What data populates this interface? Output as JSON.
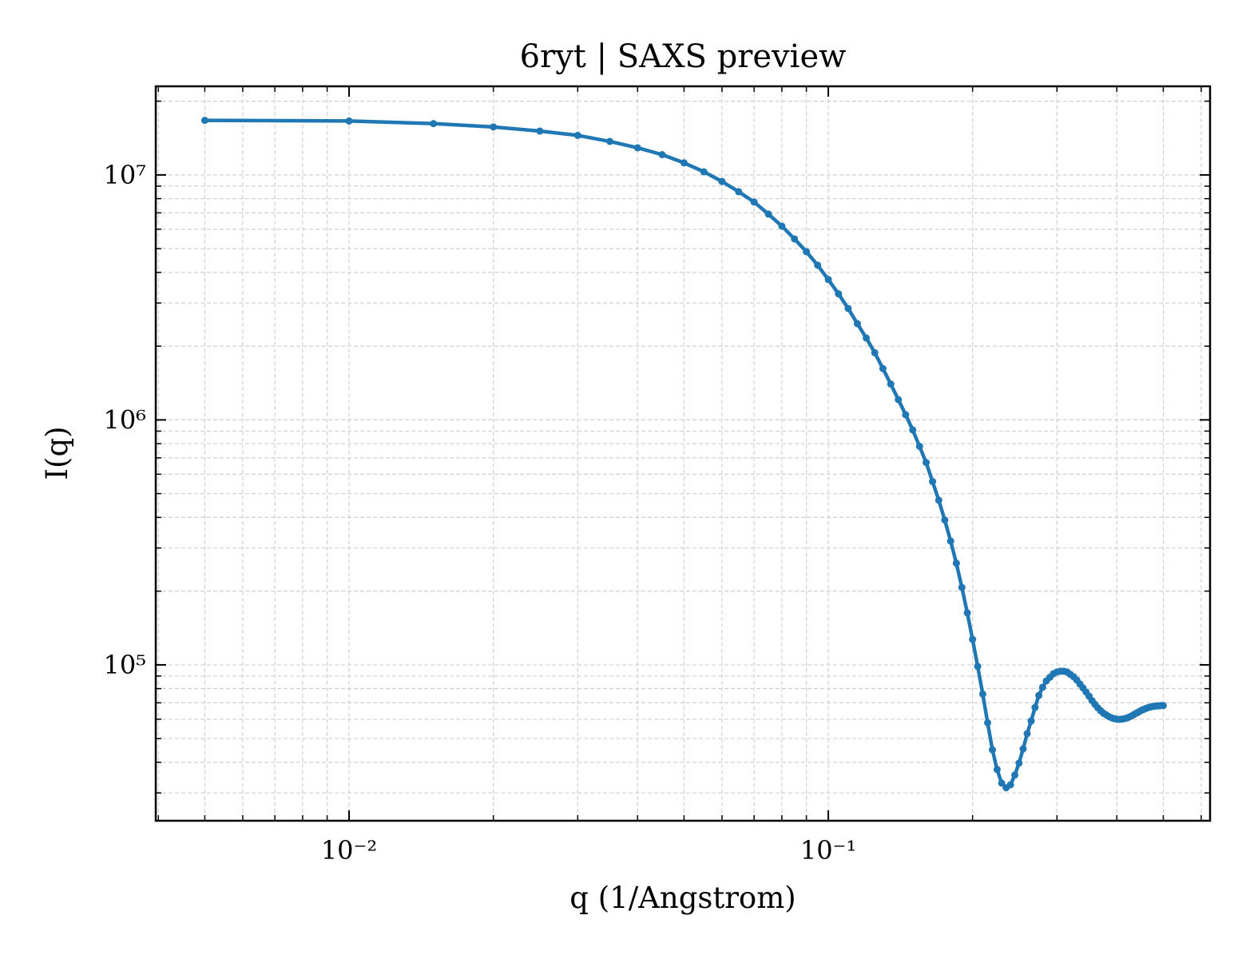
{
  "chart_data": {
    "type": "line",
    "title": "6ryt | SAXS preview",
    "x_label": "q (1/Angstrom)",
    "y_label": "I(q)",
    "x": [
      0.005,
      0.01,
      0.015,
      0.02,
      0.025,
      0.03,
      0.035,
      0.04,
      0.045,
      0.05,
      0.055,
      0.06,
      0.065,
      0.07,
      0.075,
      0.08,
      0.085,
      0.09,
      0.095,
      0.1,
      0.105,
      0.11,
      0.115,
      0.12,
      0.125,
      0.13,
      0.135,
      0.14,
      0.145,
      0.15,
      0.155,
      0.16,
      0.165,
      0.17,
      0.175,
      0.18,
      0.185,
      0.19,
      0.195,
      0.2,
      0.205,
      0.21,
      0.215,
      0.22,
      0.225,
      0.23,
      0.235,
      0.24,
      0.245,
      0.25,
      0.255,
      0.26,
      0.265,
      0.27,
      0.275,
      0.28,
      0.285,
      0.29,
      0.295,
      0.3,
      0.305,
      0.31,
      0.315,
      0.32,
      0.325,
      0.33,
      0.335,
      0.34,
      0.345,
      0.35,
      0.355,
      0.36,
      0.365,
      0.37,
      0.375,
      0.38,
      0.385,
      0.39,
      0.395,
      0.4,
      0.405,
      0.41,
      0.415,
      0.42,
      0.425,
      0.43,
      0.435,
      0.44,
      0.445,
      0.45,
      0.455,
      0.46,
      0.465,
      0.47,
      0.475,
      0.48,
      0.485,
      0.49,
      0.495,
      0.5
    ],
    "series": [
      {
        "name": "I(q)",
        "color": "#1f77b4",
        "values": [
          16700000,
          16600000,
          16200000,
          15700000,
          15100000,
          14500000,
          13700000,
          12900000,
          12100000,
          11200000,
          10300000,
          9400000,
          8540000,
          7750000,
          6920000,
          6180000,
          5480000,
          4860000,
          4280000,
          3740000,
          3270000,
          2850000,
          2470000,
          2160000,
          1880000,
          1620000,
          1400000,
          1210000,
          1050000,
          910000,
          780000,
          670000,
          560000,
          470000,
          390000,
          320000,
          260000,
          207000,
          163000,
          127000,
          98500,
          76000,
          58000,
          45000,
          37400,
          32900,
          31500,
          32400,
          35500,
          39700,
          45400,
          52400,
          59000,
          67000,
          75000,
          81000,
          86000,
          89000,
          92000,
          93500,
          94200,
          94200,
          93500,
          91400,
          89400,
          86700,
          83500,
          80500,
          77500,
          74500,
          71500,
          69000,
          66800,
          65000,
          63500,
          62500,
          61500,
          60800,
          60300,
          60000,
          59900,
          60000,
          60300,
          60700,
          61300,
          62000,
          62800,
          63600,
          64400,
          65200,
          65800,
          66400,
          66900,
          67300,
          67600,
          67800,
          68000,
          68100,
          68200,
          68200
        ]
      }
    ],
    "xscale": "log",
    "yscale": "log",
    "xlim": [
      0.00395,
      0.626
    ],
    "ylim": [
      23100,
      23000000
    ],
    "xticks": [
      {
        "value": 0.01,
        "label": "10⁻²"
      },
      {
        "value": 0.1,
        "label": "10⁻¹"
      }
    ],
    "yticks": [
      {
        "value": 100000,
        "label": "10⁵"
      },
      {
        "value": 1000000,
        "label": "10⁶"
      },
      {
        "value": 10000000,
        "label": "10⁷"
      }
    ],
    "xminorticks": [
      0.004,
      0.005,
      0.006,
      0.007,
      0.008,
      0.009,
      0.02,
      0.03,
      0.04,
      0.05,
      0.06,
      0.07,
      0.08,
      0.09,
      0.2,
      0.3,
      0.4,
      0.5,
      0.6
    ],
    "yminorticks": [
      30000,
      40000,
      50000,
      60000,
      70000,
      80000,
      90000,
      200000,
      300000,
      400000,
      500000,
      600000,
      700000,
      800000,
      900000,
      2000000,
      3000000,
      4000000,
      5000000,
      6000000,
      7000000,
      8000000,
      9000000,
      20000000
    ],
    "grid": true,
    "markers": true
  }
}
